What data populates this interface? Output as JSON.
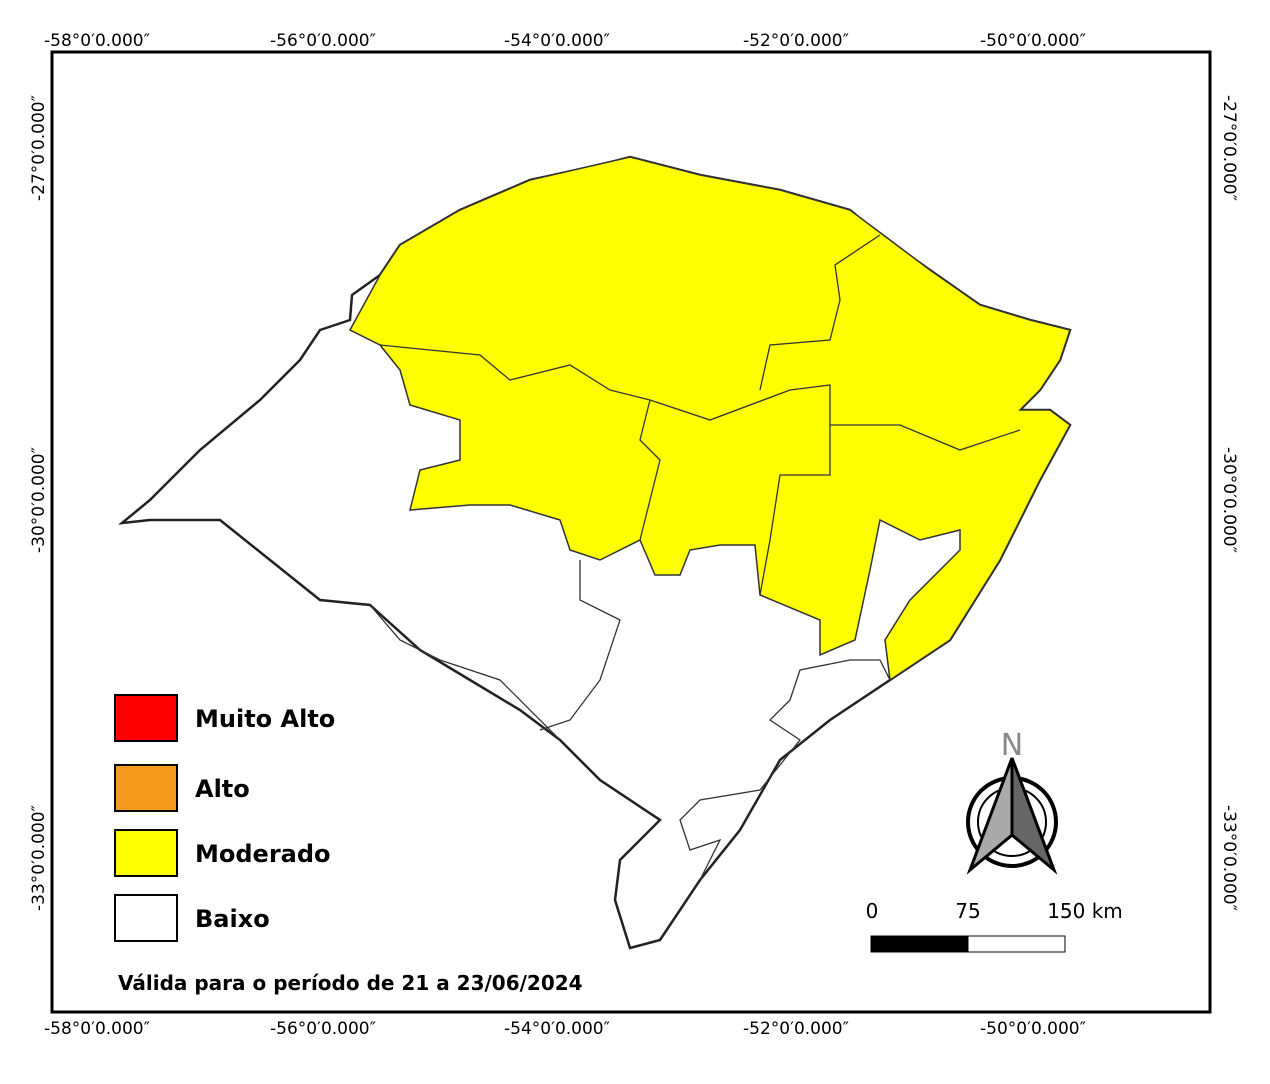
{
  "graticule": {
    "longitude_labels": [
      "-58°0′0.000″",
      "-56°0′0.000″",
      "-54°0′0.000″",
      "-52°0′0.000″",
      "-50°0′0.000″"
    ],
    "latitude_labels": [
      "-27°0′0.000″",
      "-30°0′0.000″",
      "-33°0′0.000″"
    ]
  },
  "legend": [
    {
      "label": "Muito Alto",
      "color": "#ff0000"
    },
    {
      "label": "Alto",
      "color": "#f39a1e"
    },
    {
      "label": "Moderado",
      "color": "#ffff00"
    },
    {
      "label": "Baixo",
      "color": "#ffffff"
    }
  ],
  "north_arrow": {
    "label": "N"
  },
  "scale_bar": {
    "labels": [
      "0",
      "75",
      "150 km"
    ]
  },
  "note": "Válida para o período de 21 a 23/06/2024"
}
